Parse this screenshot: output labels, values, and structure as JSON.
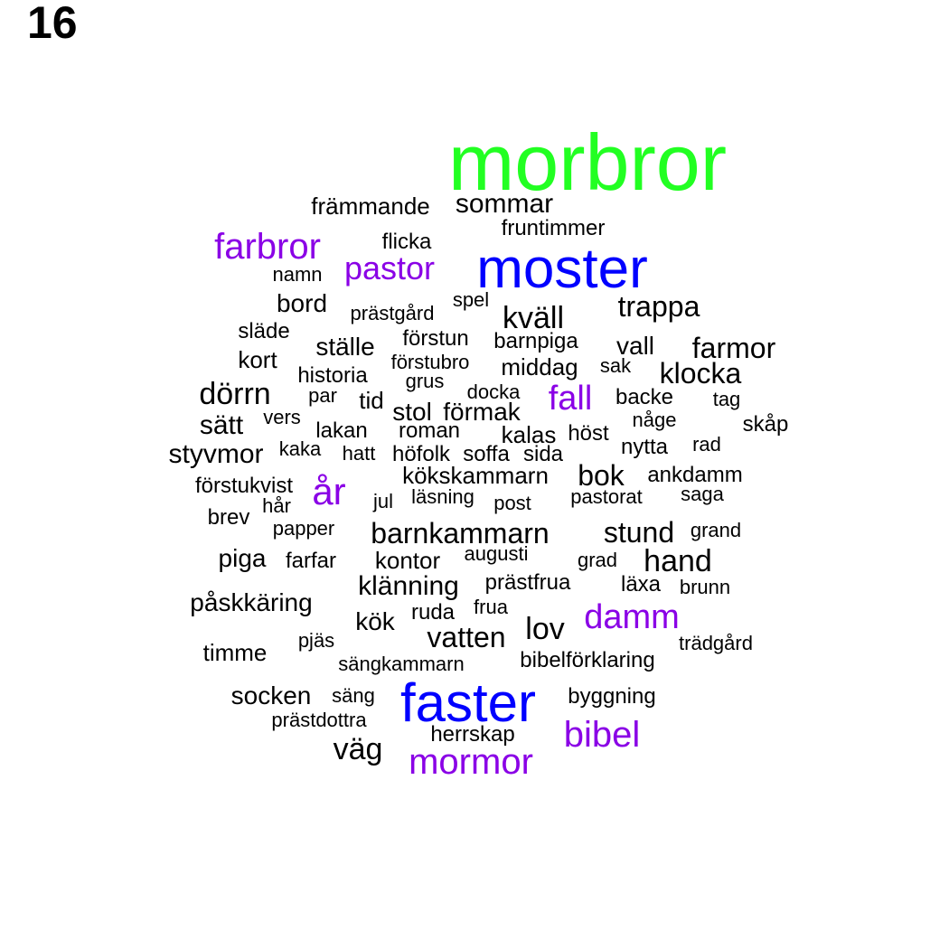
{
  "panel_label": "16",
  "colors": {
    "black": "#000000",
    "purple": "#8a00e6",
    "blue": "#0000ff",
    "green": "#22ff22"
  },
  "chart_data": {
    "type": "wordcloud",
    "title": "",
    "words": [
      {
        "text": "morbror",
        "color": "green"
      },
      {
        "text": "moster",
        "color": "blue"
      },
      {
        "text": "faster",
        "color": "blue"
      },
      {
        "text": "farbror",
        "color": "purple"
      },
      {
        "text": "pastor",
        "color": "purple"
      },
      {
        "text": "år",
        "color": "purple"
      },
      {
        "text": "fall",
        "color": "purple"
      },
      {
        "text": "damm",
        "color": "purple"
      },
      {
        "text": "bibel",
        "color": "purple"
      },
      {
        "text": "mormor",
        "color": "purple"
      },
      {
        "text": "främmande",
        "color": "black"
      },
      {
        "text": "sommar",
        "color": "black"
      },
      {
        "text": "fruntimmer",
        "color": "black"
      },
      {
        "text": "flicka",
        "color": "black"
      },
      {
        "text": "namn",
        "color": "black"
      },
      {
        "text": "bord",
        "color": "black"
      },
      {
        "text": "prästgård",
        "color": "black"
      },
      {
        "text": "spel",
        "color": "black"
      },
      {
        "text": "kväll",
        "color": "black"
      },
      {
        "text": "trappa",
        "color": "black"
      },
      {
        "text": "släde",
        "color": "black"
      },
      {
        "text": "ställe",
        "color": "black"
      },
      {
        "text": "förstun",
        "color": "black"
      },
      {
        "text": "barnpiga",
        "color": "black"
      },
      {
        "text": "vall",
        "color": "black"
      },
      {
        "text": "farmor",
        "color": "black"
      },
      {
        "text": "kort",
        "color": "black"
      },
      {
        "text": "förstubro",
        "color": "black"
      },
      {
        "text": "historia",
        "color": "black"
      },
      {
        "text": "middag",
        "color": "black"
      },
      {
        "text": "sak",
        "color": "black"
      },
      {
        "text": "klocka",
        "color": "black"
      },
      {
        "text": "grus",
        "color": "black"
      },
      {
        "text": "dörrn",
        "color": "black"
      },
      {
        "text": "par",
        "color": "black"
      },
      {
        "text": "tid",
        "color": "black"
      },
      {
        "text": "docka",
        "color": "black"
      },
      {
        "text": "backe",
        "color": "black"
      },
      {
        "text": "tag",
        "color": "black"
      },
      {
        "text": "stol",
        "color": "black"
      },
      {
        "text": "förmak",
        "color": "black"
      },
      {
        "text": "sätt",
        "color": "black"
      },
      {
        "text": "vers",
        "color": "black"
      },
      {
        "text": "någe",
        "color": "black"
      },
      {
        "text": "skåp",
        "color": "black"
      },
      {
        "text": "lakan",
        "color": "black"
      },
      {
        "text": "roman",
        "color": "black"
      },
      {
        "text": "kalas",
        "color": "black"
      },
      {
        "text": "höst",
        "color": "black"
      },
      {
        "text": "nytta",
        "color": "black"
      },
      {
        "text": "rad",
        "color": "black"
      },
      {
        "text": "styvmor",
        "color": "black"
      },
      {
        "text": "kaka",
        "color": "black"
      },
      {
        "text": "hatt",
        "color": "black"
      },
      {
        "text": "höfolk",
        "color": "black"
      },
      {
        "text": "soffa",
        "color": "black"
      },
      {
        "text": "sida",
        "color": "black"
      },
      {
        "text": "kökskammarn",
        "color": "black"
      },
      {
        "text": "bok",
        "color": "black"
      },
      {
        "text": "ankdamm",
        "color": "black"
      },
      {
        "text": "förstukvist",
        "color": "black"
      },
      {
        "text": "hår",
        "color": "black"
      },
      {
        "text": "jul",
        "color": "black"
      },
      {
        "text": "läsning",
        "color": "black"
      },
      {
        "text": "post",
        "color": "black"
      },
      {
        "text": "pastorat",
        "color": "black"
      },
      {
        "text": "saga",
        "color": "black"
      },
      {
        "text": "brev",
        "color": "black"
      },
      {
        "text": "papper",
        "color": "black"
      },
      {
        "text": "barnkammarn",
        "color": "black"
      },
      {
        "text": "stund",
        "color": "black"
      },
      {
        "text": "grand",
        "color": "black"
      },
      {
        "text": "piga",
        "color": "black"
      },
      {
        "text": "farfar",
        "color": "black"
      },
      {
        "text": "kontor",
        "color": "black"
      },
      {
        "text": "augusti",
        "color": "black"
      },
      {
        "text": "grad",
        "color": "black"
      },
      {
        "text": "hand",
        "color": "black"
      },
      {
        "text": "klänning",
        "color": "black"
      },
      {
        "text": "prästfrua",
        "color": "black"
      },
      {
        "text": "läxa",
        "color": "black"
      },
      {
        "text": "brunn",
        "color": "black"
      },
      {
        "text": "påskkäring",
        "color": "black"
      },
      {
        "text": "ruda",
        "color": "black"
      },
      {
        "text": "frua",
        "color": "black"
      },
      {
        "text": "kök",
        "color": "black"
      },
      {
        "text": "lov",
        "color": "black"
      },
      {
        "text": "vatten",
        "color": "black"
      },
      {
        "text": "pjäs",
        "color": "black"
      },
      {
        "text": "trädgård",
        "color": "black"
      },
      {
        "text": "timme",
        "color": "black"
      },
      {
        "text": "sängkammarn",
        "color": "black"
      },
      {
        "text": "bibelförklaring",
        "color": "black"
      },
      {
        "text": "socken",
        "color": "black"
      },
      {
        "text": "säng",
        "color": "black"
      },
      {
        "text": "byggning",
        "color": "black"
      },
      {
        "text": "prästdottra",
        "color": "black"
      },
      {
        "text": "herrskap",
        "color": "black"
      },
      {
        "text": "väg",
        "color": "black"
      }
    ]
  }
}
